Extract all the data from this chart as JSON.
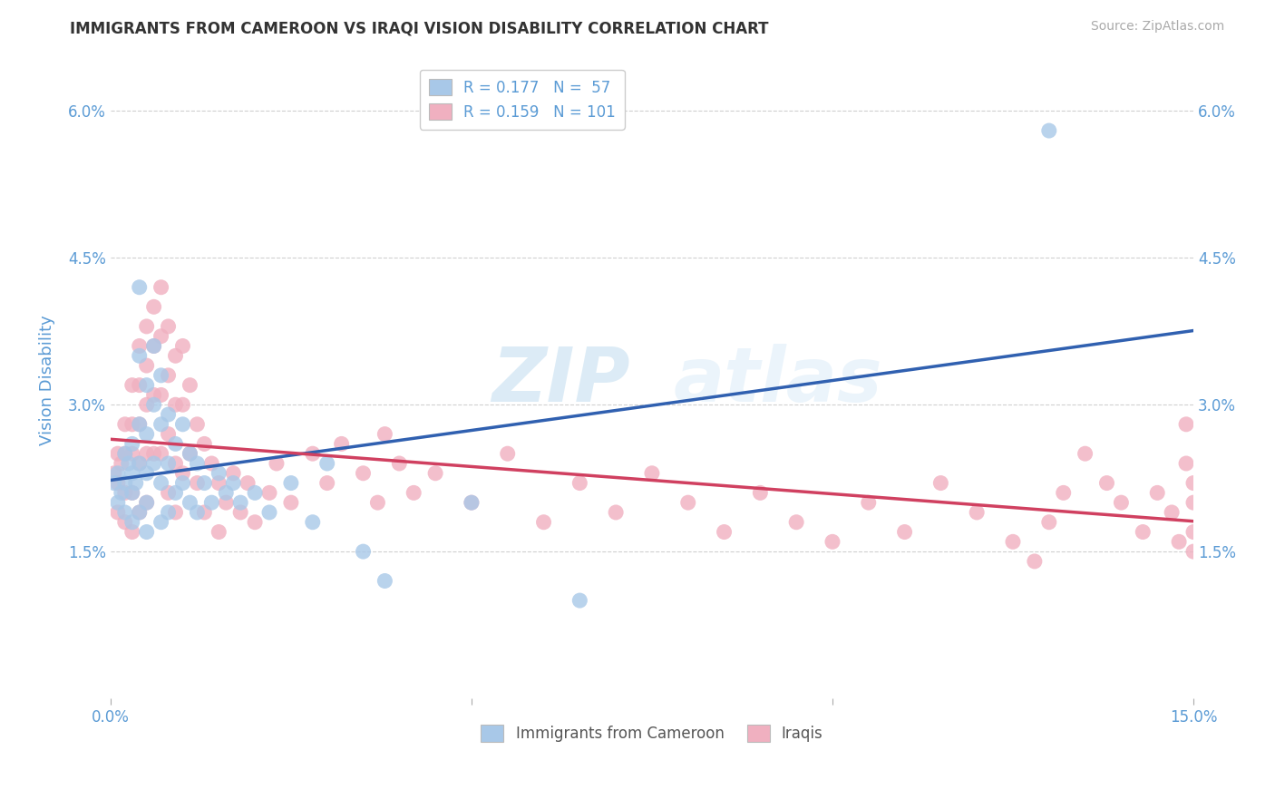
{
  "title": "IMMIGRANTS FROM CAMEROON VS IRAQI VISION DISABILITY CORRELATION CHART",
  "source": "Source: ZipAtlas.com",
  "ylabel": "Vision Disability",
  "xlim": [
    0.0,
    0.15
  ],
  "ylim": [
    0.0,
    0.065
  ],
  "yticks": [
    0.015,
    0.03,
    0.045,
    0.06
  ],
  "yticklabels": [
    "1.5%",
    "3.0%",
    "4.5%",
    "6.0%"
  ],
  "grid_color": "#d0d0d0",
  "background_color": "#ffffff",
  "watermark_zip": "ZIP",
  "watermark_atlas": "atlas",
  "legend_R1": "R = 0.177",
  "legend_N1": "N =  57",
  "legend_R2": "R = 0.159",
  "legend_N2": "N = 101",
  "blue_color": "#a8c8e8",
  "pink_color": "#f0b0c0",
  "blue_line_color": "#3060b0",
  "pink_line_color": "#d04060",
  "axis_label_color": "#5b9bd5",
  "tick_color": "#5b9bd5",
  "cameroon_x": [
    0.0005,
    0.001,
    0.001,
    0.0015,
    0.002,
    0.002,
    0.002,
    0.0025,
    0.003,
    0.003,
    0.003,
    0.003,
    0.0035,
    0.004,
    0.004,
    0.004,
    0.004,
    0.004,
    0.005,
    0.005,
    0.005,
    0.005,
    0.005,
    0.006,
    0.006,
    0.006,
    0.007,
    0.007,
    0.007,
    0.007,
    0.008,
    0.008,
    0.008,
    0.009,
    0.009,
    0.01,
    0.01,
    0.011,
    0.011,
    0.012,
    0.012,
    0.013,
    0.014,
    0.015,
    0.016,
    0.017,
    0.018,
    0.02,
    0.022,
    0.025,
    0.028,
    0.03,
    0.035,
    0.038,
    0.05,
    0.065,
    0.13
  ],
  "cameroon_y": [
    0.022,
    0.02,
    0.023,
    0.021,
    0.025,
    0.022,
    0.019,
    0.024,
    0.026,
    0.023,
    0.021,
    0.018,
    0.022,
    0.042,
    0.035,
    0.028,
    0.024,
    0.019,
    0.032,
    0.027,
    0.023,
    0.02,
    0.017,
    0.036,
    0.03,
    0.024,
    0.033,
    0.028,
    0.022,
    0.018,
    0.029,
    0.024,
    0.019,
    0.026,
    0.021,
    0.028,
    0.022,
    0.025,
    0.02,
    0.024,
    0.019,
    0.022,
    0.02,
    0.023,
    0.021,
    0.022,
    0.02,
    0.021,
    0.019,
    0.022,
    0.018,
    0.024,
    0.015,
    0.012,
    0.02,
    0.01,
    0.058
  ],
  "iraqi_x": [
    0.0005,
    0.001,
    0.001,
    0.001,
    0.0015,
    0.002,
    0.002,
    0.002,
    0.002,
    0.003,
    0.003,
    0.003,
    0.003,
    0.003,
    0.004,
    0.004,
    0.004,
    0.004,
    0.004,
    0.005,
    0.005,
    0.005,
    0.005,
    0.005,
    0.006,
    0.006,
    0.006,
    0.006,
    0.007,
    0.007,
    0.007,
    0.007,
    0.008,
    0.008,
    0.008,
    0.008,
    0.009,
    0.009,
    0.009,
    0.009,
    0.01,
    0.01,
    0.01,
    0.011,
    0.011,
    0.012,
    0.012,
    0.013,
    0.013,
    0.014,
    0.015,
    0.015,
    0.016,
    0.017,
    0.018,
    0.019,
    0.02,
    0.022,
    0.023,
    0.025,
    0.028,
    0.03,
    0.032,
    0.035,
    0.037,
    0.038,
    0.04,
    0.042,
    0.045,
    0.05,
    0.055,
    0.06,
    0.065,
    0.07,
    0.075,
    0.08,
    0.085,
    0.09,
    0.095,
    0.1,
    0.105,
    0.11,
    0.115,
    0.12,
    0.125,
    0.128,
    0.13,
    0.132,
    0.135,
    0.138,
    0.14,
    0.143,
    0.145,
    0.147,
    0.148,
    0.149,
    0.149,
    0.15,
    0.15,
    0.15,
    0.15
  ],
  "iraqi_y": [
    0.023,
    0.025,
    0.022,
    0.019,
    0.024,
    0.028,
    0.025,
    0.021,
    0.018,
    0.032,
    0.028,
    0.025,
    0.021,
    0.017,
    0.036,
    0.032,
    0.028,
    0.024,
    0.019,
    0.038,
    0.034,
    0.03,
    0.025,
    0.02,
    0.04,
    0.036,
    0.031,
    0.025,
    0.042,
    0.037,
    0.031,
    0.025,
    0.038,
    0.033,
    0.027,
    0.021,
    0.035,
    0.03,
    0.024,
    0.019,
    0.036,
    0.03,
    0.023,
    0.032,
    0.025,
    0.028,
    0.022,
    0.026,
    0.019,
    0.024,
    0.022,
    0.017,
    0.02,
    0.023,
    0.019,
    0.022,
    0.018,
    0.021,
    0.024,
    0.02,
    0.025,
    0.022,
    0.026,
    0.023,
    0.02,
    0.027,
    0.024,
    0.021,
    0.023,
    0.02,
    0.025,
    0.018,
    0.022,
    0.019,
    0.023,
    0.02,
    0.017,
    0.021,
    0.018,
    0.016,
    0.02,
    0.017,
    0.022,
    0.019,
    0.016,
    0.014,
    0.018,
    0.021,
    0.025,
    0.022,
    0.02,
    0.017,
    0.021,
    0.019,
    0.016,
    0.028,
    0.024,
    0.022,
    0.02,
    0.017,
    0.015
  ]
}
